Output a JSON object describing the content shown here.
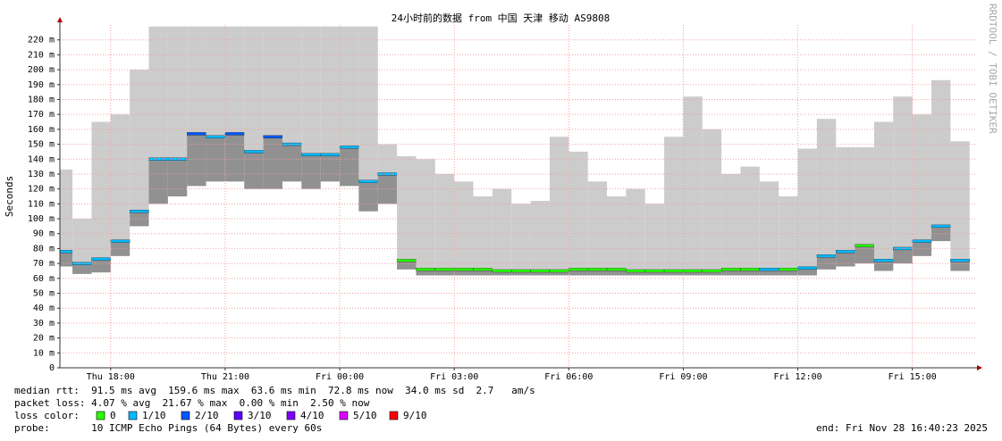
{
  "chart_data": {
    "type": "smokeping",
    "title": "24小时前的数据 from 中国 天津 移动 AS9808",
    "y_label": "Seconds",
    "watermark": "RRDTOOL / TOBI OETIKER",
    "grid": true,
    "xlim": [
      16.67,
      40.67
    ],
    "xticks": [
      {
        "value": 18,
        "label": "Thu 18:00"
      },
      {
        "value": 21,
        "label": "Thu 21:00"
      },
      {
        "value": 24,
        "label": "Fri 00:00"
      },
      {
        "value": 27,
        "label": "Fri 03:00"
      },
      {
        "value": 30,
        "label": "Fri 06:00"
      },
      {
        "value": 33,
        "label": "Fri 09:00"
      },
      {
        "value": 36,
        "label": "Fri 12:00"
      },
      {
        "value": 39,
        "label": "Fri 15:00"
      }
    ],
    "ylim": [
      0,
      0.23
    ],
    "yticks": [
      {
        "value": 0,
        "label": "0"
      },
      {
        "value": 0.01,
        "label": "10 m"
      },
      {
        "value": 0.02,
        "label": "20 m"
      },
      {
        "value": 0.03,
        "label": "30 m"
      },
      {
        "value": 0.04,
        "label": "40 m"
      },
      {
        "value": 0.05,
        "label": "50 m"
      },
      {
        "value": 0.06,
        "label": "60 m"
      },
      {
        "value": 0.07,
        "label": "70 m"
      },
      {
        "value": 0.08,
        "label": "80 m"
      },
      {
        "value": 0.09,
        "label": "90 m"
      },
      {
        "value": 0.1,
        "label": "100 m"
      },
      {
        "value": 0.11,
        "label": "110 m"
      },
      {
        "value": 0.12,
        "label": "120 m"
      },
      {
        "value": 0.13,
        "label": "130 m"
      },
      {
        "value": 0.14,
        "label": "140 m"
      },
      {
        "value": 0.15,
        "label": "150 m"
      },
      {
        "value": 0.16,
        "label": "160 m"
      },
      {
        "value": 0.17,
        "label": "170 m"
      },
      {
        "value": 0.18,
        "label": "180 m"
      },
      {
        "value": 0.19,
        "label": "190 m"
      },
      {
        "value": 0.2,
        "label": "200 m"
      },
      {
        "value": 0.21,
        "label": "210 m"
      },
      {
        "value": 0.22,
        "label": "220 m"
      }
    ],
    "x": [
      16.75,
      17.25,
      17.75,
      18.25,
      18.75,
      19.25,
      19.75,
      20.25,
      20.75,
      21.25,
      21.75,
      22.25,
      22.75,
      23.25,
      23.75,
      24.25,
      24.75,
      25.25,
      25.75,
      26.25,
      26.75,
      27.25,
      27.75,
      28.25,
      28.75,
      29.25,
      29.75,
      30.25,
      30.75,
      31.25,
      31.75,
      32.25,
      32.75,
      33.25,
      33.75,
      34.25,
      34.75,
      35.25,
      35.75,
      36.25,
      36.75,
      37.25,
      37.75,
      38.25,
      38.75,
      39.25,
      39.75,
      40.25
    ],
    "median": [
      0.078,
      0.07,
      0.073,
      0.085,
      0.105,
      0.14,
      0.14,
      0.157,
      0.155,
      0.157,
      0.145,
      0.155,
      0.15,
      0.143,
      0.143,
      0.148,
      0.125,
      0.13,
      0.072,
      0.066,
      0.066,
      0.066,
      0.066,
      0.065,
      0.065,
      0.065,
      0.065,
      0.066,
      0.066,
      0.066,
      0.065,
      0.065,
      0.065,
      0.065,
      0.065,
      0.066,
      0.066,
      0.066,
      0.066,
      0.067,
      0.075,
      0.078,
      0.082,
      0.072,
      0.08,
      0.085,
      0.095,
      0.072
    ],
    "median_colors": [
      "#00b8ff",
      "#00b8ff",
      "#00b8ff",
      "#00b8ff",
      "#00b8ff",
      "#00b8ff",
      "#00b8ff",
      "#0059ff",
      "#00b8ff",
      "#0059ff",
      "#00b8ff",
      "#0059ff",
      "#00b8ff",
      "#00b8ff",
      "#00b8ff",
      "#00b8ff",
      "#00b8ff",
      "#00b8ff",
      "#26ff00",
      "#26ff00",
      "#26ff00",
      "#26ff00",
      "#26ff00",
      "#26ff00",
      "#26ff00",
      "#26ff00",
      "#26ff00",
      "#26ff00",
      "#26ff00",
      "#26ff00",
      "#26ff00",
      "#26ff00",
      "#26ff00",
      "#26ff00",
      "#26ff00",
      "#26ff00",
      "#26ff00",
      "#00b8ff",
      "#26ff00",
      "#00b8ff",
      "#00b8ff",
      "#00b8ff",
      "#26ff00",
      "#00b8ff",
      "#00b8ff",
      "#00b8ff",
      "#00b8ff",
      "#00b8ff"
    ],
    "min": [
      0.068,
      0.063,
      0.064,
      0.075,
      0.095,
      0.11,
      0.115,
      0.122,
      0.125,
      0.125,
      0.12,
      0.12,
      0.125,
      0.12,
      0.125,
      0.122,
      0.105,
      0.11,
      0.066,
      0.062,
      0.062,
      0.062,
      0.062,
      0.062,
      0.062,
      0.062,
      0.062,
      0.062,
      0.062,
      0.062,
      0.062,
      0.062,
      0.062,
      0.062,
      0.062,
      0.062,
      0.062,
      0.062,
      0.062,
      0.062,
      0.066,
      0.068,
      0.07,
      0.065,
      0.07,
      0.075,
      0.085,
      0.065
    ],
    "max": [
      0.133,
      0.1,
      0.165,
      0.17,
      0.2,
      0.229,
      0.229,
      0.229,
      0.229,
      0.229,
      0.229,
      0.229,
      0.229,
      0.229,
      0.229,
      0.229,
      0.229,
      0.15,
      0.142,
      0.14,
      0.13,
      0.125,
      0.115,
      0.12,
      0.11,
      0.112,
      0.155,
      0.145,
      0.125,
      0.115,
      0.12,
      0.11,
      0.155,
      0.182,
      0.16,
      0.13,
      0.135,
      0.125,
      0.115,
      0.147,
      0.167,
      0.148,
      0.148,
      0.165,
      0.182,
      0.17,
      0.193,
      0.152
    ],
    "stats": {
      "median_rtt": "median rtt:  91.5 ms avg  159.6 ms max  63.6 ms min  72.8 ms now  34.0 ms sd  2.7   am/s",
      "packet_loss": "packet loss: 4.07 % avg  21.67 % max  0.00 % min  2.50 % now",
      "loss_color_label": "loss color:",
      "loss_colors": [
        {
          "label": "0",
          "color": "#26ff00"
        },
        {
          "label": "1/10",
          "color": "#00b8ff"
        },
        {
          "label": "2/10",
          "color": "#0059ff"
        },
        {
          "label": "3/10",
          "color": "#5e00ff"
        },
        {
          "label": "4/10",
          "color": "#7e00ff"
        },
        {
          "label": "5/10",
          "color": "#dd00ff"
        },
        {
          "label": "9/10",
          "color": "#ff0000"
        }
      ],
      "probe": "probe:       10 ICMP Echo Pings (64 Bytes) every 60s",
      "end": "end: Fri Nov 28 16:40:23 2025"
    }
  }
}
